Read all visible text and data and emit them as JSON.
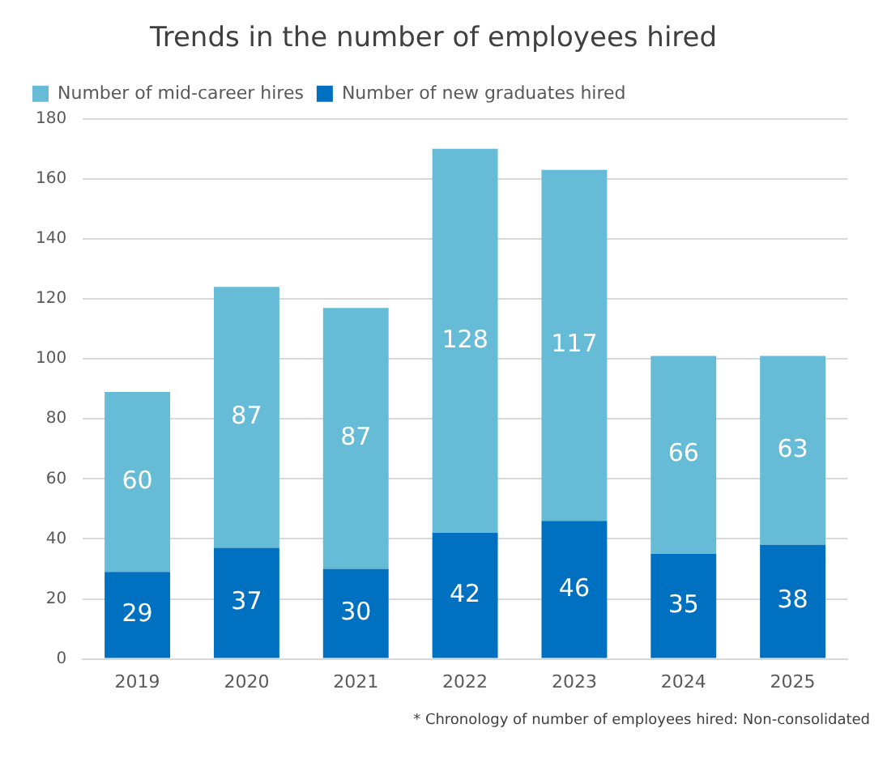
{
  "chart_data": {
    "type": "bar",
    "title": "Trends in the number of employees hired",
    "categories": [
      "2019",
      "2020",
      "2021",
      "2022",
      "2023",
      "2024",
      "2025"
    ],
    "series": [
      {
        "name": "Number of new graduates hired",
        "color": "#0070c0",
        "values": [
          29,
          37,
          30,
          42,
          46,
          35,
          38
        ]
      },
      {
        "name": "Number of mid-career hires",
        "color": "#66bcd6",
        "values": [
          60,
          87,
          87,
          128,
          117,
          66,
          63
        ]
      }
    ],
    "stacked": true,
    "ylim": [
      0,
      180
    ],
    "yticks": [
      0,
      20,
      40,
      60,
      80,
      100,
      120,
      140,
      160,
      180
    ],
    "grid": "y",
    "legend": "top left",
    "data_labels": true,
    "annotations": [
      "* Chronology of number of employees hired: Non-consolidated"
    ]
  }
}
